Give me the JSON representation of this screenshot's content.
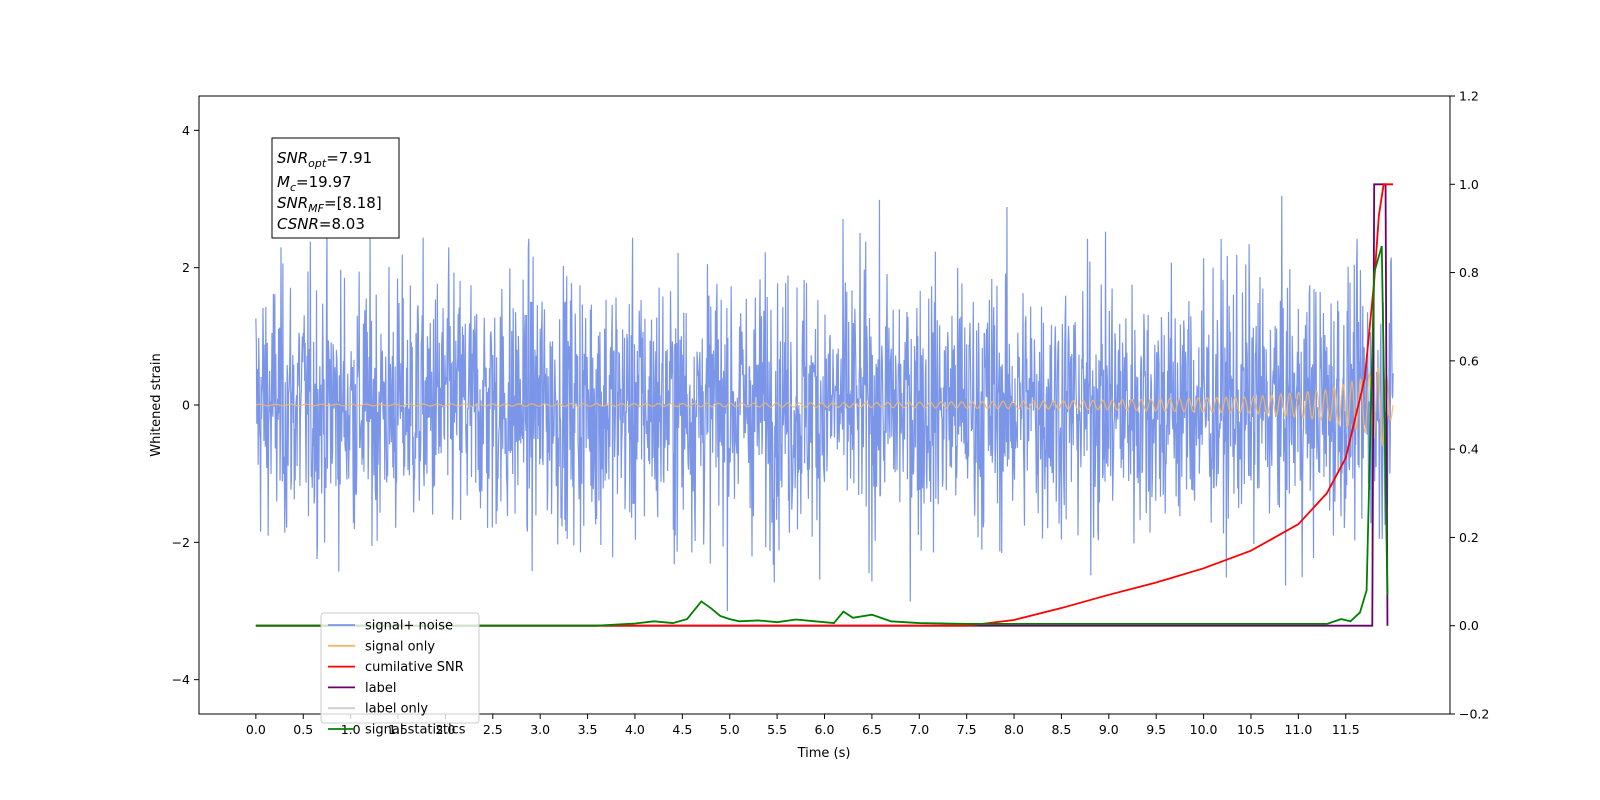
{
  "chart_data": {
    "type": "line",
    "title": "",
    "xlabel": "Time (s)",
    "ylabel": "Whitened strain",
    "xlim": [
      -0.6,
      12.6
    ],
    "ylim": [
      -4.5,
      4.5
    ],
    "y2lim": [
      -0.2,
      1.2
    ],
    "x_ticks": [
      "0.0",
      "0.5",
      "1.0",
      "1.5",
      "2.0",
      "2.5",
      "3.0",
      "3.5",
      "4.0",
      "4.5",
      "5.0",
      "5.5",
      "6.0",
      "6.5",
      "7.0",
      "7.5",
      "8.0",
      "8.5",
      "9.0",
      "9.5",
      "10.0",
      "10.5",
      "11.0",
      "11.5"
    ],
    "y_ticks": [
      "4",
      "2",
      "0",
      "−2",
      "−4"
    ],
    "y2_ticks": [
      "1.2",
      "1.0",
      "0.8",
      "0.6",
      "0.4",
      "0.2",
      "0.0",
      "−0.2"
    ],
    "grid": false,
    "legend_position": "lower-left",
    "annotation": {
      "snr_opt": {
        "base": "SNR",
        "sub": "opt",
        "value": "=7.91"
      },
      "mc": {
        "base": "M",
        "sub": "c",
        "value": "=19.97"
      },
      "snr_mf": {
        "base": "SNR",
        "sub": "MF",
        "value": "=[8.18]"
      },
      "csnr": {
        "base": "CSNR",
        "sub": "",
        "value": "=8.03"
      }
    },
    "series": [
      {
        "name": "signal+ noise",
        "color": "#7b96e8",
        "axis": "left",
        "description_values": "white noise, std ~1, peaks ~±4, x from 0 to 12"
      },
      {
        "name": "signal only",
        "color": "#f5b860",
        "axis": "left",
        "envelope": {
          "x": [
            0,
            4,
            7,
            9,
            10.5,
            11.3,
            11.7,
            11.9,
            12.0
          ],
          "amp": [
            0.01,
            0.02,
            0.04,
            0.07,
            0.12,
            0.22,
            0.4,
            0.6,
            0.1
          ]
        }
      },
      {
        "name": "cumilative SNR",
        "color": "#ff0000",
        "axis": "right",
        "x": [
          0,
          7.5,
          8.0,
          8.5,
          9.0,
          9.5,
          10.0,
          10.5,
          11.0,
          11.3,
          11.5,
          11.7,
          11.8,
          11.85,
          11.9,
          12.0
        ],
        "y": [
          0.0,
          0.0,
          0.013,
          0.04,
          0.07,
          0.098,
          0.13,
          0.17,
          0.23,
          0.3,
          0.38,
          0.56,
          0.78,
          0.93,
          1.0,
          1.0
        ]
      },
      {
        "name": "label",
        "color": "#6b006b",
        "axis": "right",
        "x": [
          0,
          11.78,
          11.8,
          11.92,
          11.94
        ],
        "y": [
          0,
          0,
          1,
          1,
          0
        ]
      },
      {
        "name": "label only",
        "color": "#cccccc",
        "axis": "right",
        "x": [],
        "y": []
      },
      {
        "name": "signal statistics",
        "color": "#008000",
        "axis": "right",
        "x": [
          0,
          3.6,
          4.0,
          4.2,
          4.4,
          4.55,
          4.7,
          4.8,
          4.9,
          5.0,
          5.1,
          5.3,
          5.5,
          5.7,
          5.9,
          6.1,
          6.2,
          6.3,
          6.5,
          6.7,
          7.0,
          7.5,
          9.0,
          11.3,
          11.45,
          11.55,
          11.65,
          11.72,
          11.8,
          11.88,
          11.94
        ],
        "y": [
          0,
          0,
          0.005,
          0.01,
          0.006,
          0.015,
          0.055,
          0.04,
          0.022,
          0.015,
          0.01,
          0.012,
          0.008,
          0.014,
          0.01,
          0.006,
          0.032,
          0.018,
          0.025,
          0.01,
          0.006,
          0.004,
          0.004,
          0.004,
          0.015,
          0.01,
          0.03,
          0.08,
          0.8,
          0.86,
          0.07
        ]
      }
    ]
  }
}
